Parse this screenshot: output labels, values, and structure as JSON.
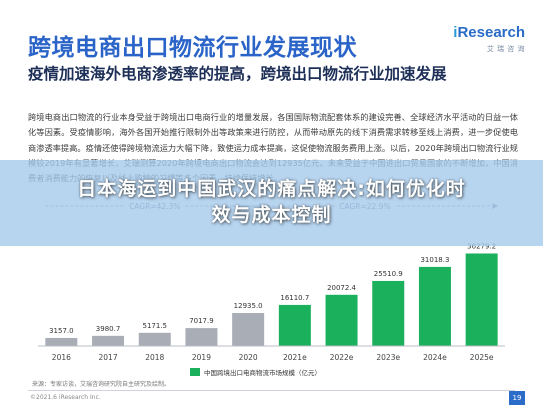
{
  "header": {
    "title": "跨境电商出口物流行业发展现状",
    "logo_prefix": "i",
    "logo_main": "Research",
    "logo_sub": "艾 瑞 咨 询"
  },
  "subtitle": "疫情加速海外电商渗透率的提高，跨境出口物流行业加速发展",
  "paragraph": "跨境电商出口物流的行业本身受益于跨境出口电商行业的增量发展，各国国际物流配套体系的建设完善、全球经济水平活动的日益一体化等因素。受疫情影响，海外各国开始推行限制外出等政策来进行防控，从而带动原先的线下消费需求转移至线上消费，进一步促使电商渗透率提高。疫情还使得跨境物流运力大幅下降，致使运力成本提高，这促使物流服务费用上涨。以后，2020年跨境出口物流行业规模较2019年有显著增长，艾瑞测算2020年跨境电商出口物流会达到12935亿元。未来受益于中国进出口贸易国家的不断增加，中国消费者消费能力的恢复以及线上购物的习惯等多个因素，持续保持增长。",
  "overlay": {
    "line1": "日本海运到中国武汉的痛点解决:如何优化时",
    "line2": "效与成本控制"
  },
  "chart_data": {
    "type": "bar",
    "title": "",
    "categories": [
      "2016",
      "2017",
      "2018",
      "2019",
      "2020",
      "2021e",
      "2022e",
      "2023e",
      "2024e",
      "2025e"
    ],
    "series": [
      {
        "name": "中国跨境出口电商物流市场规模（亿元）",
        "values": [
          3157.0,
          3980.7,
          5171.5,
          7017.9,
          12935.0,
          16110.7,
          20072.4,
          25510.9,
          31018.3,
          36279.2
        ]
      }
    ],
    "value_labels": [
      "3157.0",
      "3980.7",
      "5171.5",
      "7017.9",
      "12935.0",
      "16110.7",
      "20072.4",
      "25510.9",
      "31018.3",
      "36279.2"
    ],
    "cagr_labels": [
      "CAGR=42.3%",
      "CAGR=22.9%"
    ],
    "ylim": [
      0,
      40000
    ],
    "grid": false,
    "legend_position": "bottom-left",
    "colors": {
      "actual": "#a9adb6",
      "forecast": "#1bb05c"
    }
  },
  "footer": {
    "source": "来源：专家访谈，艾瑞咨询研究院自主研究及绘制。",
    "copyright": "©2021.6 iResearch Inc.",
    "page": "19"
  }
}
